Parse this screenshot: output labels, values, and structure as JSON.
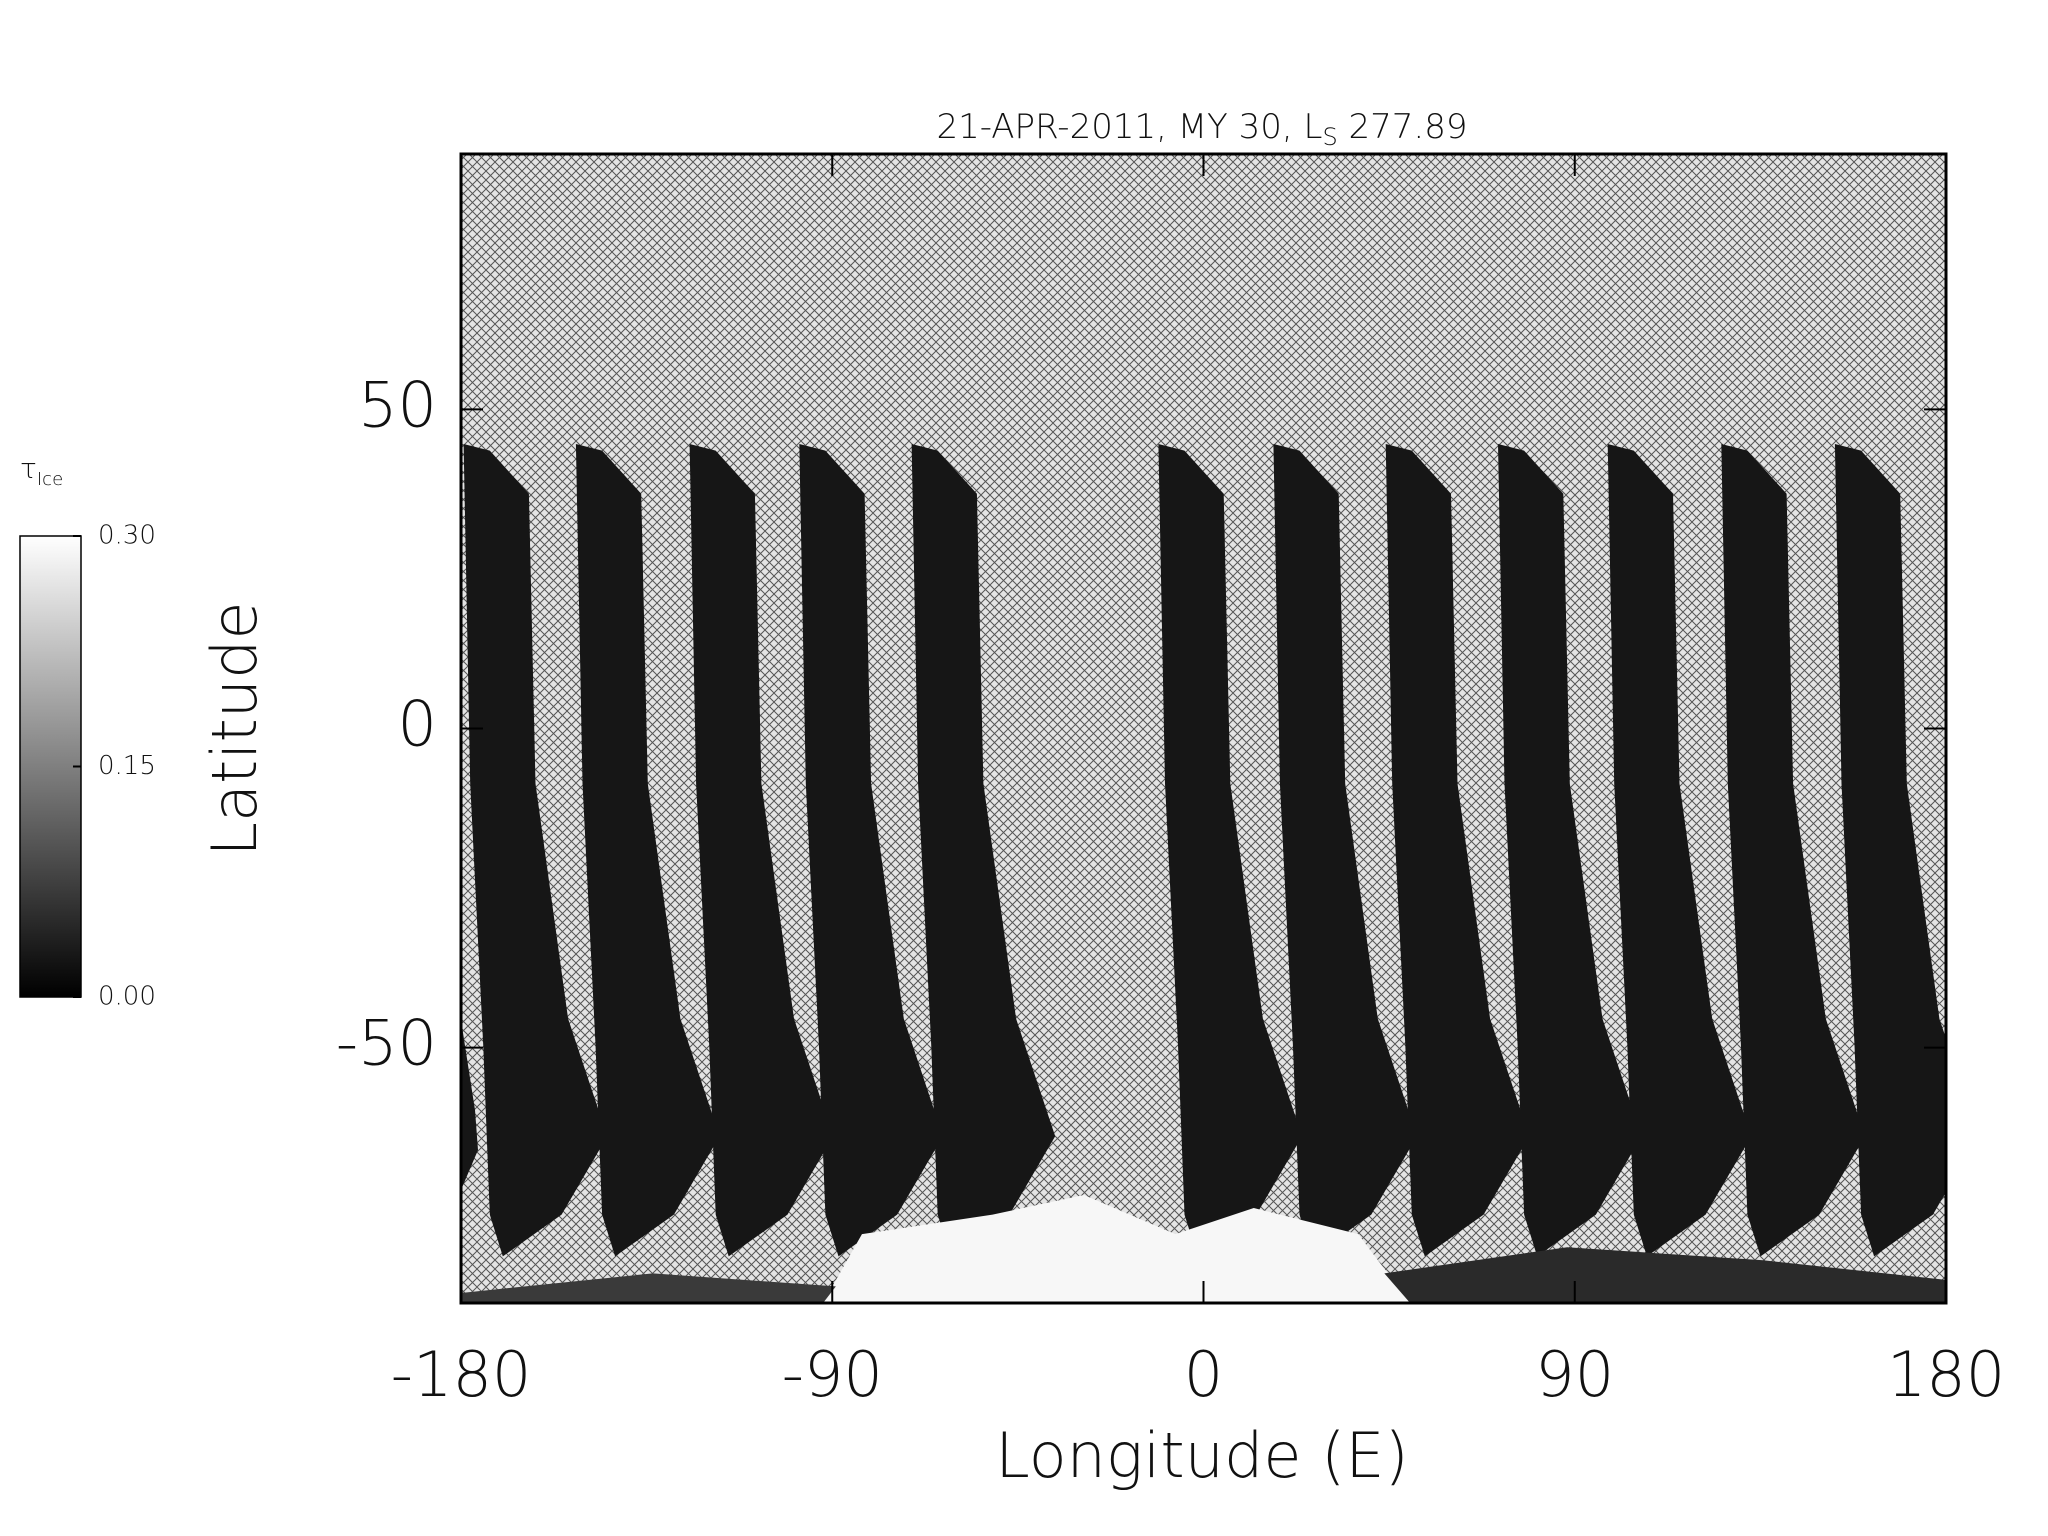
{
  "chart_data": {
    "type": "map",
    "title": [
      "21-APR-2011, MY 30,  L",
      "S",
      " 277.89"
    ],
    "xlabel": "Longitude (E)",
    "ylabel": "Latitude",
    "xlim": [
      -180,
      180
    ],
    "ylim": [
      -90,
      90
    ],
    "xticks": [
      -180,
      -90,
      0,
      90,
      180
    ],
    "yticks": [
      -50,
      0,
      50
    ],
    "colorbar": {
      "label": "τ",
      "label_sub": "Ice",
      "lim": [
        0,
        0.3
      ],
      "ticks": [
        {
          "value": 0,
          "label": "0.00"
        },
        {
          "value": 0.15,
          "label": "0.15"
        },
        {
          "value": 0.3,
          "label": "0.30"
        }
      ],
      "colors": [
        "#000000",
        "#ffffff"
      ]
    }
  }
}
